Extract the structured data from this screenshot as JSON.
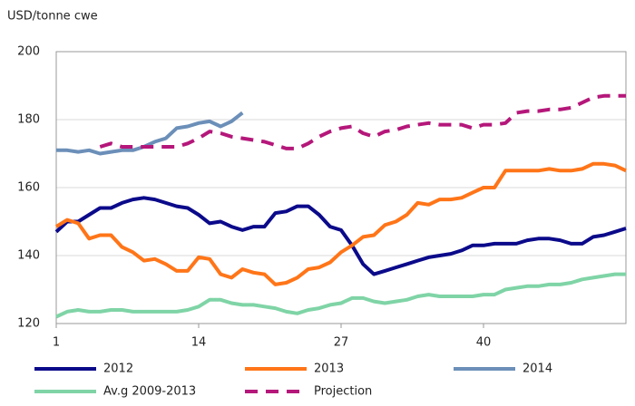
{
  "chart_data": {
    "type": "line",
    "y_axis_label": "USD/tonne cwe",
    "x": [
      1,
      2,
      3,
      4,
      5,
      6,
      7,
      8,
      9,
      10,
      11,
      12,
      13,
      14,
      15,
      16,
      17,
      18,
      19,
      20,
      21,
      22,
      23,
      24,
      25,
      26,
      27,
      28,
      29,
      30,
      31,
      32,
      33,
      34,
      35,
      36,
      37,
      38,
      39,
      40,
      41,
      42,
      43,
      44,
      45,
      46,
      47,
      48,
      49,
      50,
      51,
      52,
      53
    ],
    "xlim": [
      1,
      53
    ],
    "xticks": [
      1,
      14,
      27,
      40
    ],
    "ylim": [
      120,
      200
    ],
    "yticks": [
      120,
      140,
      160,
      180,
      200
    ],
    "grid": true,
    "series": [
      {
        "name": "2012",
        "color": "#0b0a8a",
        "dash": false,
        "values": [
          147,
          150,
          150,
          152,
          154,
          154,
          155.5,
          156.5,
          157,
          156.5,
          155.5,
          154.5,
          154,
          152,
          149.5,
          150,
          148.5,
          147.5,
          148.5,
          148.5,
          152.5,
          153,
          154.5,
          154.5,
          152,
          148.5,
          147.5,
          143,
          137.5,
          134.5,
          135.5,
          136.5,
          137.5,
          138.5,
          139.5,
          140,
          140.5,
          141.5,
          143,
          143,
          143.5,
          143.5,
          143.5,
          144.5,
          145,
          145,
          144.5,
          143.5,
          143.5,
          145.5,
          146,
          147,
          148
        ]
      },
      {
        "name": "2013",
        "color": "#ff7518",
        "dash": false,
        "values": [
          148.5,
          150.5,
          149.5,
          145,
          146,
          146,
          142.5,
          141,
          138.5,
          139,
          137.5,
          135.5,
          135.5,
          139.5,
          139,
          134.5,
          133.5,
          136,
          135,
          134.5,
          131.5,
          132,
          133.5,
          136,
          136.5,
          138,
          141,
          143,
          145.5,
          146,
          149,
          150,
          152,
          155.5,
          155,
          156.5,
          156.5,
          157,
          158.5,
          160,
          160,
          165,
          165,
          165,
          165,
          165.5,
          165,
          165,
          165.5,
          167,
          167,
          166.5,
          165
        ]
      },
      {
        "name": "2014",
        "color": "#6b8fb8",
        "dash": false,
        "values": [
          171,
          171,
          170.5,
          171,
          170,
          170.5,
          171,
          171,
          172,
          173.5,
          174.5,
          177.5,
          178,
          179,
          179.5,
          178,
          179.5,
          182,
          null,
          null,
          null,
          null,
          null,
          null,
          null,
          null,
          null,
          null,
          null,
          null,
          null,
          null,
          null,
          null,
          null,
          null,
          null,
          null,
          null,
          null,
          null,
          null,
          null,
          null,
          null,
          null,
          null,
          null,
          null,
          null,
          null,
          null,
          null
        ]
      },
      {
        "name": "Av.g 2009-2013",
        "color": "#7fd4a6",
        "dash": false,
        "values": [
          122,
          123.5,
          124,
          123.5,
          123.5,
          124,
          124,
          123.5,
          123.5,
          123.5,
          123.5,
          123.5,
          124,
          125,
          127,
          127,
          126,
          125.5,
          125.5,
          125,
          124.5,
          123.5,
          123,
          124,
          124.5,
          125.5,
          126,
          127.5,
          127.5,
          126.5,
          126,
          126.5,
          127,
          128,
          128.5,
          128,
          128,
          128,
          128,
          128.5,
          128.5,
          130,
          130.5,
          131,
          131,
          131.5,
          131.5,
          132,
          133,
          133.5,
          134,
          134.5,
          134.5
        ]
      },
      {
        "name": "Projection",
        "color": "#b5177a",
        "dash": true,
        "values": [
          null,
          null,
          null,
          null,
          172,
          173,
          172,
          172,
          172,
          172,
          172,
          172,
          173,
          174.5,
          176.5,
          176,
          175,
          174.5,
          174,
          173.5,
          172.5,
          171.5,
          171.5,
          173,
          175,
          176.5,
          177.5,
          178,
          176,
          175,
          176.5,
          177,
          178,
          178.5,
          179,
          178.5,
          178.5,
          178.5,
          177.5,
          178.5,
          178.5,
          179,
          182,
          182.5,
          182.5,
          183,
          183,
          183.5,
          185,
          186.5,
          187,
          187,
          187
        ]
      }
    ]
  }
}
